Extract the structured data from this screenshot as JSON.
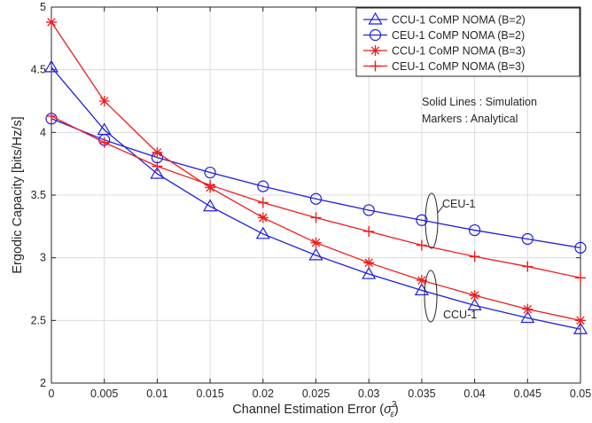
{
  "chart_data": {
    "type": "line",
    "xlabel": "Channel Estimation Error (",
    "xlabel_symbol": "σ",
    "xlabel_sup": "2",
    "xlabel_sub": "ε",
    "xlabel_close": ")",
    "ylabel": "Ergodic Capacity [bits/Hz/s]",
    "xlim": [
      0,
      0.05
    ],
    "ylim": [
      2,
      5
    ],
    "xticks": [
      "0",
      "0.005",
      "0.01",
      "0.015",
      "0.02",
      "0.025",
      "0.03",
      "0.035",
      "0.04",
      "0.045",
      "0.05"
    ],
    "yticks": [
      "2",
      "2.5",
      "3",
      "3.5",
      "4",
      "4.5",
      "5"
    ],
    "grid": true,
    "legend_position": "top-right",
    "x": [
      0,
      0.005,
      0.01,
      0.015,
      0.02,
      0.025,
      0.03,
      0.035,
      0.04,
      0.045,
      0.05
    ],
    "series": [
      {
        "name": "CCU-1 CoMP NOMA (B=2)",
        "color": "#1f1fe0",
        "marker": "triangle",
        "values": [
          4.52,
          4.02,
          3.67,
          3.41,
          3.19,
          3.02,
          2.87,
          2.74,
          2.62,
          2.52,
          2.43
        ]
      },
      {
        "name": "CEU-1 CoMP NOMA (B=2)",
        "color": "#1f1fe0",
        "marker": "circle",
        "values": [
          4.11,
          3.94,
          3.8,
          3.68,
          3.57,
          3.47,
          3.38,
          3.3,
          3.22,
          3.15,
          3.08
        ]
      },
      {
        "name": "CCU-1 CoMP NOMA (B=3)",
        "color": "#ee1c1c",
        "marker": "asterisk",
        "values": [
          4.88,
          4.25,
          3.84,
          3.56,
          3.32,
          3.12,
          2.96,
          2.82,
          2.7,
          2.59,
          2.5
        ]
      },
      {
        "name": "CEU-1 CoMP NOMA (B=3)",
        "color": "#ee1c1c",
        "marker": "plus",
        "values": [
          4.13,
          3.92,
          3.73,
          3.58,
          3.44,
          3.32,
          3.21,
          3.1,
          3.01,
          2.93,
          2.84
        ]
      }
    ],
    "annotations": {
      "note_line1": "Solid Lines : Simulation",
      "note_line2": "Markers : Analytical",
      "ceu_label": "CEU-1",
      "ccu_label": "CCU-1"
    }
  }
}
